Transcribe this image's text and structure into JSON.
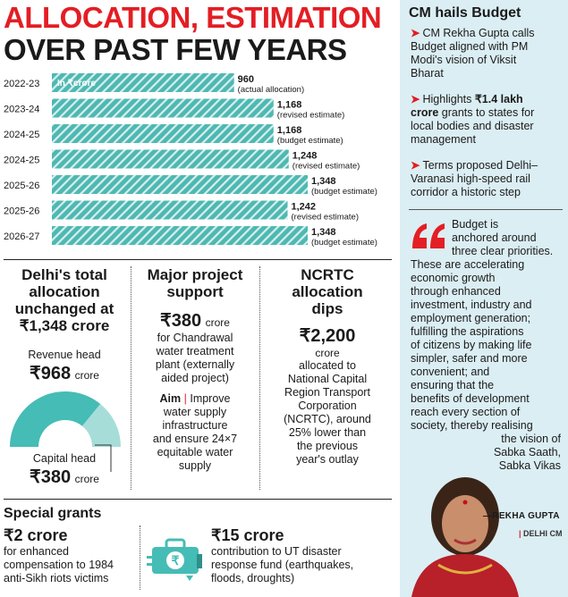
{
  "header": {
    "line1": "ALLOCATION, ESTIMATION",
    "line2": "OVER PAST FEW YEARS"
  },
  "chart_data": {
    "type": "bar",
    "orientation": "horizontal",
    "unit_label": "In ₹crore",
    "categories": [
      "2022-23",
      "2023-24",
      "2024-25",
      "2024-25",
      "2025-26",
      "2025-26",
      "2026-27"
    ],
    "values": [
      960,
      1168,
      1168,
      1248,
      1348,
      1242,
      1348
    ],
    "value_labels": [
      "960",
      "1,168",
      "1,168",
      "1,248",
      "1,348",
      "1,242",
      "1,348"
    ],
    "notes": [
      "(actual allocation)",
      "(revised estimate)",
      "(budget estimate)",
      "(revised estimate)",
      "(budget estimate)",
      "(revised estimate)",
      "(budget estimate)"
    ],
    "xlim": [
      0,
      1348
    ],
    "colors": {
      "bar": "#4fb8b2",
      "stripe": "#d7f0ee"
    }
  },
  "delhi_total": {
    "heading": "Delhi's total allocation unchanged at ₹1,348 crore",
    "heading_l1": "Delhi's total",
    "heading_l2": "allocation",
    "heading_l3": "unchanged at",
    "heading_l4": "₹1,348 crore",
    "revenue_label": "Revenue head",
    "revenue_amount": "₹968",
    "revenue_unit": "crore",
    "capital_label": "Capital head",
    "capital_amount": "₹380",
    "capital_unit": "crore",
    "revenue_value": 968,
    "capital_value": 380,
    "colors": {
      "revenue": "#45bcb5",
      "capital": "#a7ddd9"
    }
  },
  "major_project": {
    "heading_l1": "Major project",
    "heading_l2": "support",
    "amount": "₹380",
    "unit": "crore",
    "desc_l1": "for Chandrawal",
    "desc_l2": "water treatment",
    "desc_l3": "plant (externally",
    "desc_l4": "aided project)",
    "aim_label": "Aim",
    "aim_l1": "Improve",
    "aim_l2": "water supply",
    "aim_l3": "infrastructure",
    "aim_l4": "and ensure 24×7",
    "aim_l5": "equitable water",
    "aim_l6": "supply"
  },
  "ncrtc": {
    "heading_l1": "NCRTC",
    "heading_l2": "allocation",
    "heading_l3": "dips",
    "amount": "₹2,200",
    "unit": "crore",
    "desc_l1": "allocated to",
    "desc_l2": "National Capital",
    "desc_l3": "Region Transport",
    "desc_l4": "Corporation",
    "desc_l5": "(NCRTC), around",
    "desc_l6": "25% lower than",
    "desc_l7": "the previous",
    "desc_l8": "year's outlay"
  },
  "special_grants": {
    "title": "Special grants",
    "left_amount": "₹2 crore",
    "left_l1": "for enhanced",
    "left_l2": "compensation to 1984",
    "left_l3": "anti-Sikh riots victims",
    "right_amount": "₹15 crore",
    "right_l1": "contribution to UT disaster",
    "right_l2": "response fund (earthquakes,",
    "right_l3": "floods, droughts)",
    "icon": "first-aid-kit-icon"
  },
  "cm_panel": {
    "title": "CM hails Budget",
    "item1_l1": "CM Rekha Gupta calls",
    "item1_l2": "Budget aligned with PM",
    "item1_l3": "Modi's vision of Viksit",
    "item1_l4": "Bharat",
    "item2_pre": "Highlights",
    "item2_bold1": "₹1.4 lakh",
    "item2_bold2": "crore",
    "item2_l2": "grants to states for",
    "item2_l3": "local bodies and disaster",
    "item2_l4": "management",
    "item3_l1": "Terms proposed Delhi–",
    "item3_l2": "Varanasi high-speed rail",
    "item3_l3": "corridor a historic step",
    "quote_lines": [
      "Budget is",
      "anchored around",
      "three clear priorities.",
      "These are accelerating",
      "economic growth",
      "through enhanced",
      "investment, industry and",
      "employment generation;",
      "fulfilling the aspirations",
      "of citizens by making life",
      "simpler, safer and more",
      "convenient; and",
      "ensuring that the",
      "benefits of development",
      "reach every section of",
      "society, thereby realising",
      "the vision of",
      "Sabka Saath,",
      "Sabka Vikas"
    ],
    "signature": "—REKHA GUPTA",
    "role": "DELHI CM",
    "colors": {
      "panel_bg": "#dbeef3",
      "accent": "#e31e24"
    }
  }
}
